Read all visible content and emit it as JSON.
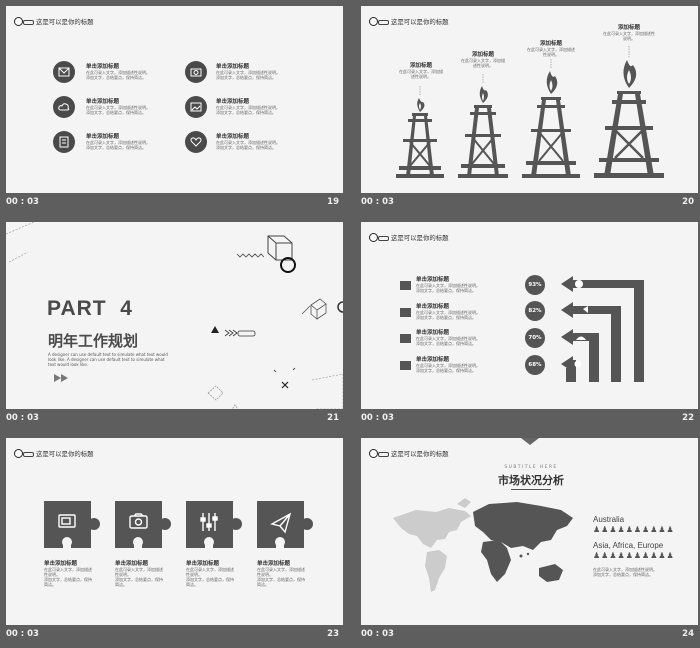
{
  "header_text": "这是可以是你的标题",
  "item_title": "单击添加标题",
  "item_text_1": "在此可录入文字，添加描述性说明。",
  "item_text_2": "添加文字，总结要点，保持简洁。",
  "slides": [
    {
      "time": "00 : 03",
      "number": "19"
    },
    {
      "time": "00 : 03",
      "number": "20"
    },
    {
      "time": "00 : 03",
      "number": "21"
    },
    {
      "time": "00 : 03",
      "number": "22"
    },
    {
      "time": "00 : 03",
      "number": "23"
    },
    {
      "time": "00 : 03",
      "number": "24"
    }
  ],
  "slide20": {
    "towers": [
      {
        "label": "添加标题"
      },
      {
        "label": "添加标题"
      },
      {
        "label": "添加标题"
      },
      {
        "label": "添加标题"
      }
    ]
  },
  "slide21": {
    "part": "PART  4",
    "title": "明年工作规划",
    "desc": "A designer can use default text to simulate what text would look like. A designer can use default text to simulate what text would look like."
  },
  "slide22": {
    "percents": [
      "93%",
      "82%",
      "70%",
      "68%"
    ]
  },
  "slide24": {
    "subtitle": "SUBTITLE HERE",
    "title": "市场状况分析",
    "region1": "Australia",
    "region2": "Asia, Africa, Europe"
  },
  "icon_names": [
    "mail-icon",
    "camera-icon",
    "cloud-icon",
    "image-icon",
    "document-icon",
    "heart-icon",
    "tv-icon",
    "sliders-icon",
    "paper-plane-icon",
    "flame-icon",
    "oil-derrick-icon",
    "power-icon",
    "megaphone-icon",
    "umbrella-icon",
    "pie-icon",
    "person-icon"
  ]
}
